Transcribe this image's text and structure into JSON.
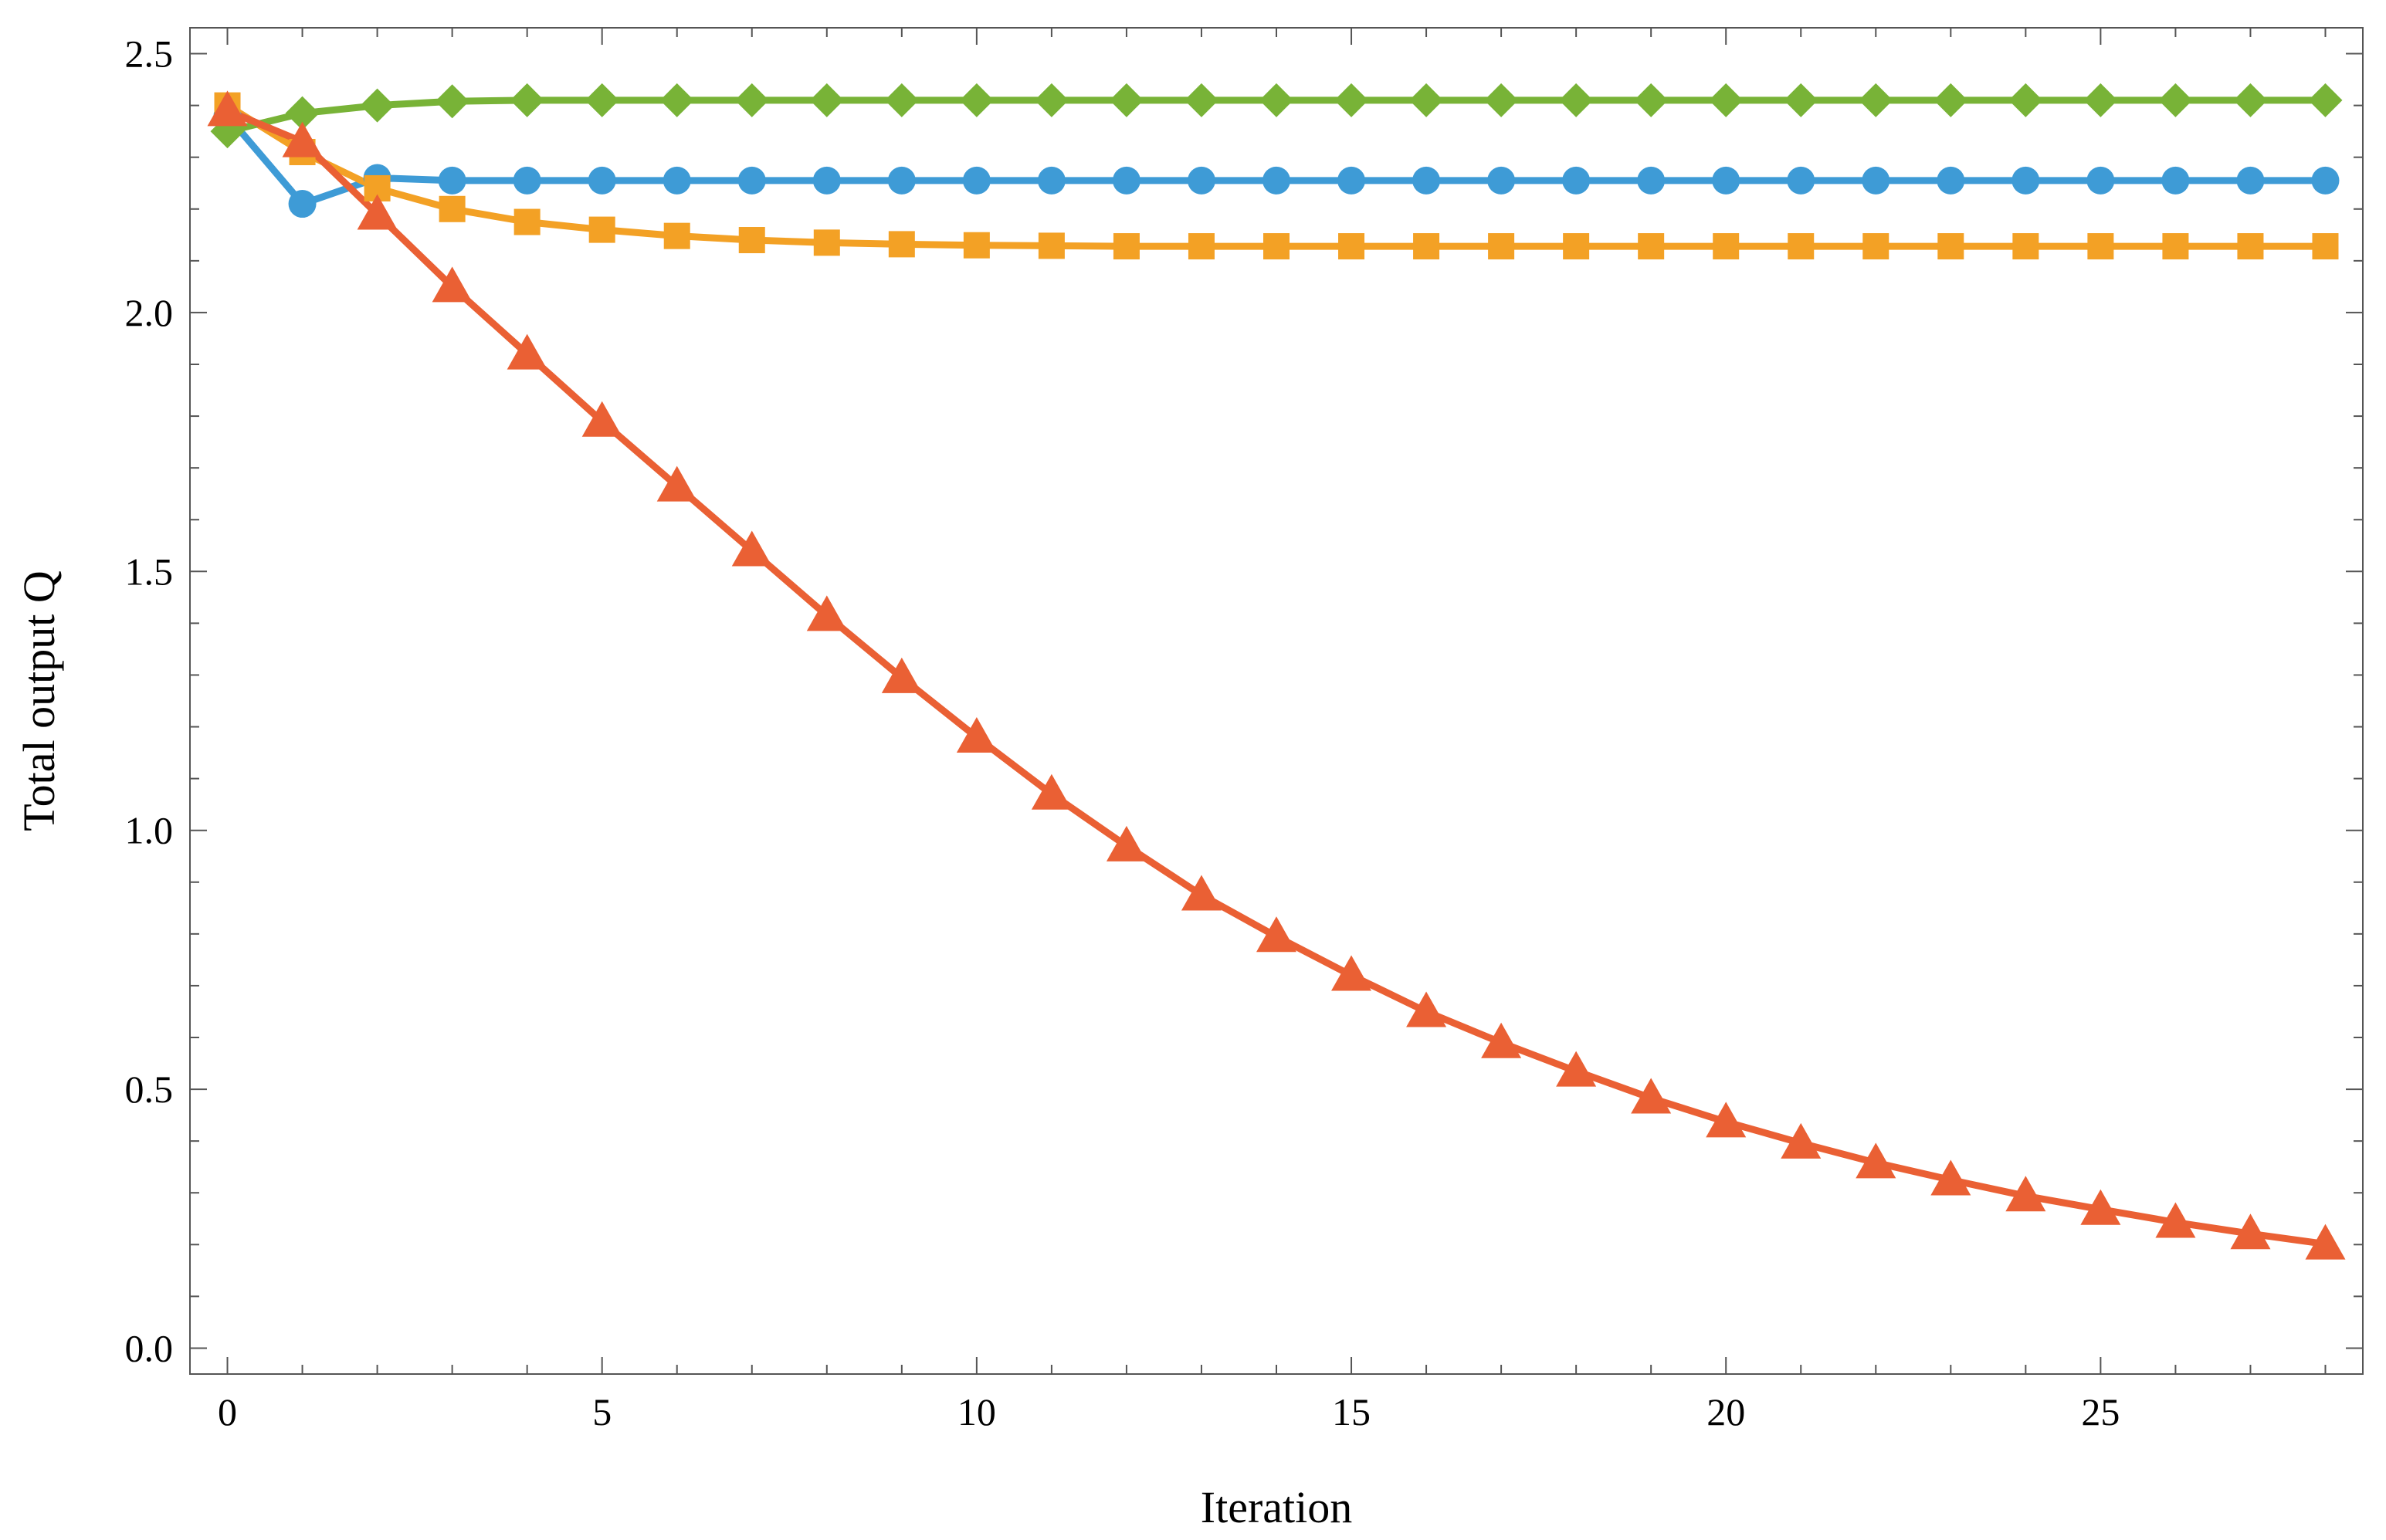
{
  "chart_data": {
    "type": "line",
    "title": "",
    "xlabel": "Iteration",
    "ylabel": "Total output Q",
    "xlim": [
      -0.5,
      28.5
    ],
    "ylim": [
      -0.05,
      2.55
    ],
    "xticks": [
      0,
      5,
      10,
      15,
      20,
      25
    ],
    "xtick_labels": [
      "0",
      "5",
      "10",
      "15",
      "20",
      "25"
    ],
    "yticks": [
      0.0,
      0.5,
      1.0,
      1.5,
      2.0,
      2.5
    ],
    "ytick_labels": [
      "0.0",
      "0.5",
      "1.0",
      "1.5",
      "2.0",
      "2.5"
    ],
    "grid": false,
    "legend": "none",
    "x": [
      0,
      1,
      2,
      3,
      4,
      5,
      6,
      7,
      8,
      9,
      10,
      11,
      12,
      13,
      14,
      15,
      16,
      17,
      18,
      19,
      20,
      21,
      22,
      23,
      24,
      25,
      26,
      27,
      28
    ],
    "series": [
      {
        "marker": "circle",
        "color": "#3e9bd6",
        "values": [
          2.38,
          2.21,
          2.26,
          2.255,
          2.255,
          2.255,
          2.255,
          2.255,
          2.255,
          2.255,
          2.255,
          2.255,
          2.255,
          2.255,
          2.255,
          2.255,
          2.255,
          2.255,
          2.255,
          2.255,
          2.255,
          2.255,
          2.255,
          2.255,
          2.255,
          2.255,
          2.255,
          2.255,
          2.255
        ]
      },
      {
        "marker": "square",
        "color": "#f3a125",
        "values": [
          2.4,
          2.31,
          2.24,
          2.2,
          2.175,
          2.16,
          2.148,
          2.14,
          2.135,
          2.132,
          2.13,
          2.129,
          2.128,
          2.128,
          2.128,
          2.128,
          2.128,
          2.128,
          2.128,
          2.128,
          2.128,
          2.128,
          2.128,
          2.128,
          2.128,
          2.128,
          2.128,
          2.128,
          2.128
        ]
      },
      {
        "marker": "diamond",
        "color": "#78b337",
        "values": [
          2.35,
          2.385,
          2.4,
          2.408,
          2.41,
          2.41,
          2.41,
          2.41,
          2.41,
          2.41,
          2.41,
          2.41,
          2.41,
          2.41,
          2.41,
          2.41,
          2.41,
          2.41,
          2.41,
          2.41,
          2.41,
          2.41,
          2.41,
          2.41,
          2.41,
          2.41,
          2.41,
          2.41,
          2.41
        ]
      },
      {
        "marker": "triangle",
        "color": "#ea6034",
        "values": [
          2.39,
          2.33,
          2.19,
          2.05,
          1.92,
          1.79,
          1.665,
          1.54,
          1.415,
          1.295,
          1.18,
          1.07,
          0.97,
          0.875,
          0.795,
          0.72,
          0.65,
          0.59,
          0.535,
          0.483,
          0.437,
          0.396,
          0.358,
          0.325,
          0.294,
          0.268,
          0.243,
          0.221,
          0.201
        ]
      }
    ]
  }
}
